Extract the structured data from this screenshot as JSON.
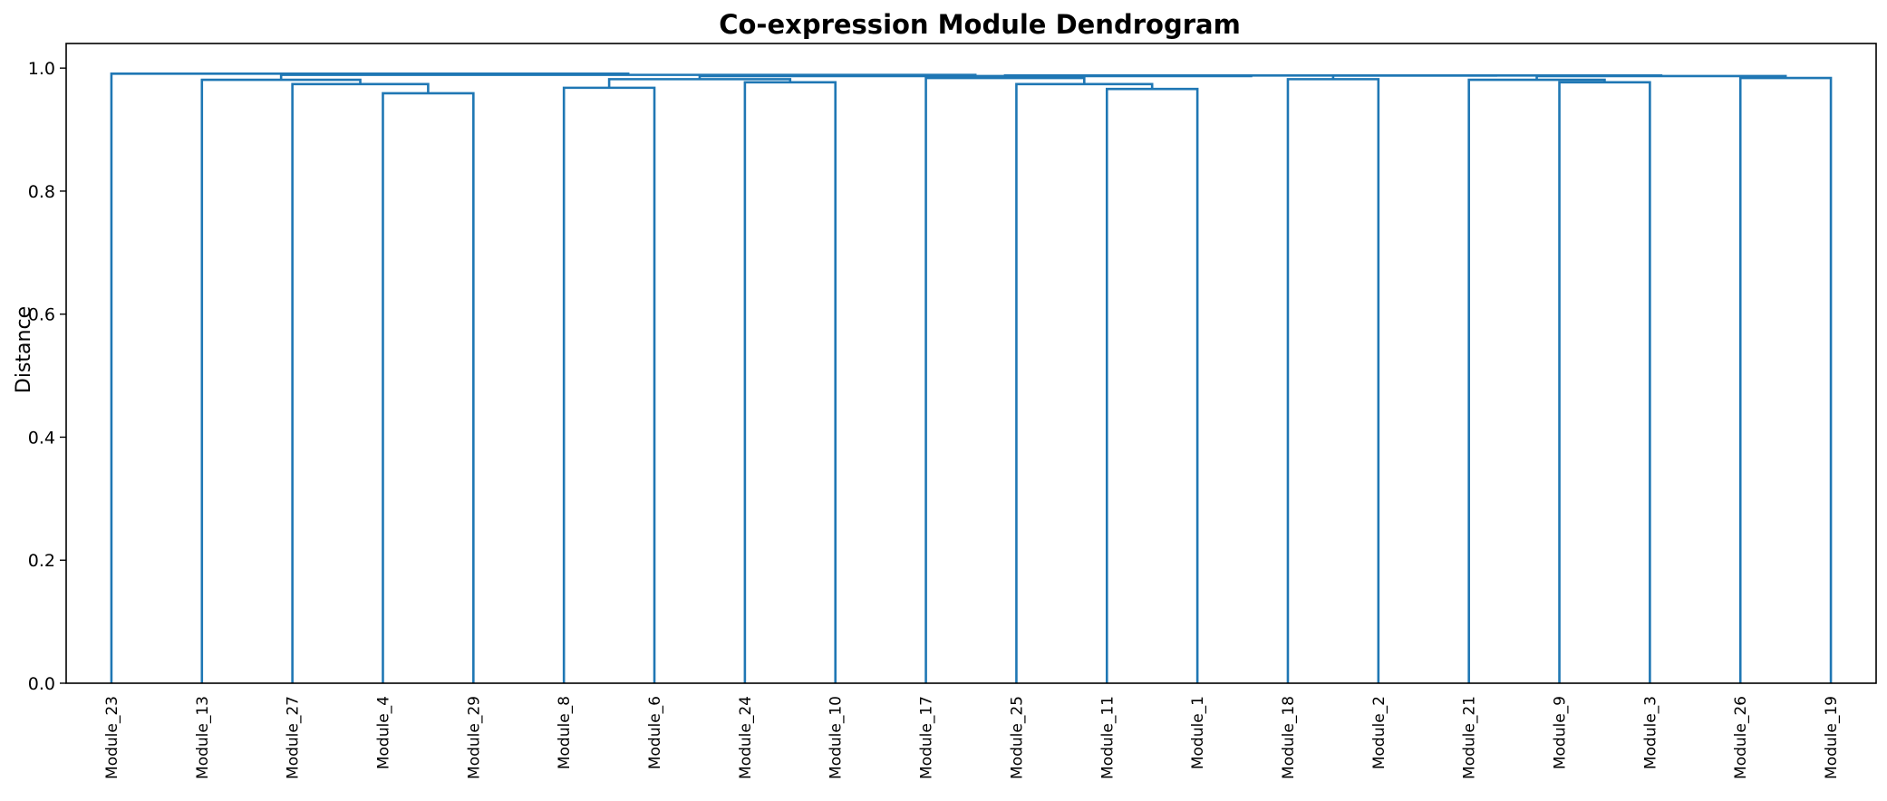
{
  "chart_data": {
    "type": "dendrogram",
    "title": "Co-expression Module Dendrogram",
    "xlabel": "",
    "ylabel": "Distance",
    "ylim": [
      0,
      1.04
    ],
    "yticks": [
      "0.0",
      "0.2",
      "0.4",
      "0.6",
      "0.8",
      "1.0"
    ],
    "grid": false,
    "line_color": "#1f77b4",
    "leaves": [
      "Module_23",
      "Module_13",
      "Module_27",
      "Module_4",
      "Module_29",
      "Module_8",
      "Module_6",
      "Module_24",
      "Module_10",
      "Module_17",
      "Module_25",
      "Module_11",
      "Module_1",
      "Module_18",
      "Module_2",
      "Module_21",
      "Module_9",
      "Module_3",
      "Module_26",
      "Module_19"
    ],
    "merges": [
      {
        "id": "m1",
        "left": "Module_4",
        "right": "Module_29",
        "height": 0.959
      },
      {
        "id": "m2",
        "left": "Module_27",
        "right": "m1",
        "height": 0.974
      },
      {
        "id": "m3",
        "left": "Module_13",
        "right": "m2",
        "height": 0.981
      },
      {
        "id": "m4",
        "left": "Module_8",
        "right": "Module_6",
        "height": 0.968
      },
      {
        "id": "m5",
        "left": "Module_24",
        "right": "Module_10",
        "height": 0.977
      },
      {
        "id": "m6",
        "left": "m4",
        "right": "m5",
        "height": 0.982
      },
      {
        "id": "m7",
        "left": "Module_11",
        "right": "Module_1",
        "height": 0.966
      },
      {
        "id": "m8",
        "left": "Module_25",
        "right": "m7",
        "height": 0.974
      },
      {
        "id": "m9",
        "left": "Module_17",
        "right": "m8",
        "height": 0.984
      },
      {
        "id": "m10",
        "left": "Module_18",
        "right": "Module_2",
        "height": 0.982
      },
      {
        "id": "m11",
        "left": "Module_9",
        "right": "Module_3",
        "height": 0.977
      },
      {
        "id": "m12",
        "left": "Module_21",
        "right": "m11",
        "height": 0.981
      },
      {
        "id": "m13",
        "left": "Module_26",
        "right": "Module_19",
        "height": 0.984
      },
      {
        "id": "m14",
        "left": "m12",
        "right": "m13",
        "height": 0.987
      },
      {
        "id": "m15",
        "left": "m10",
        "right": "m14",
        "height": 0.988
      },
      {
        "id": "m16",
        "left": "m9",
        "right": "m15",
        "height": 0.988
      },
      {
        "id": "m17",
        "left": "m6",
        "right": "m16",
        "height": 0.987
      },
      {
        "id": "m18",
        "left": "m3",
        "right": "m17",
        "height": 0.989
      },
      {
        "id": "m19",
        "left": "Module_23",
        "right": "m18",
        "height": 0.991
      }
    ]
  }
}
